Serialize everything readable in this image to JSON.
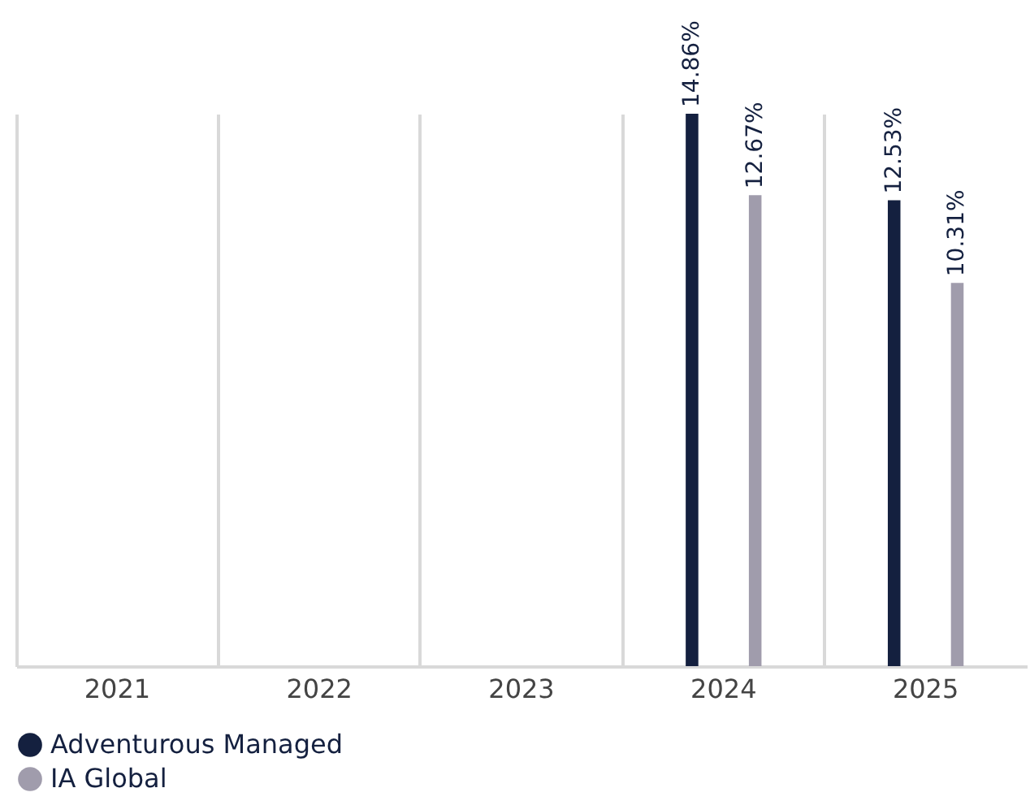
{
  "chart_data": {
    "type": "bar",
    "categories": [
      "2021",
      "2022",
      "2023",
      "2024",
      "2025"
    ],
    "series": [
      {
        "name": "Adventurous Managed",
        "color": "#14203f",
        "values": [
          null,
          null,
          null,
          14.86,
          12.53
        ],
        "value_labels": [
          null,
          null,
          null,
          "14.86%",
          "12.53%"
        ]
      },
      {
        "name": "IA Global",
        "color": "#a09cac",
        "values": [
          null,
          null,
          null,
          12.67,
          10.31
        ],
        "value_labels": [
          null,
          null,
          null,
          "12.67%",
          "10.31%"
        ]
      }
    ],
    "grid": "x",
    "legend": "bottom"
  }
}
